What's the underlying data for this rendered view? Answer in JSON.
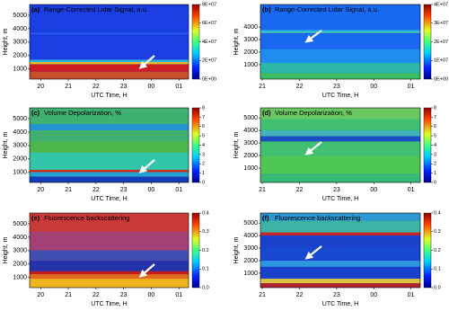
{
  "chart_data": [
    {
      "type": "heatmap",
      "panel_label": "(a)",
      "title": "Range-Corrected Lidar Signal, a.u.",
      "ylabel": "Height, m",
      "xlabel": "UTC Time, H",
      "xlim": [
        19.6,
        25.35
      ],
      "xticks": [
        20,
        21,
        22,
        23,
        {
          "value": 24,
          "label": "00"
        },
        {
          "value": 25,
          "label": "01"
        }
      ],
      "ylim": [
        250,
        5800
      ],
      "yticks": [
        1000,
        2000,
        3000,
        4000,
        5000
      ],
      "clim": [
        0,
        80000000
      ],
      "cticks": [
        {
          "value": 0,
          "label": "0E+00"
        },
        {
          "value": 20000000,
          "label": "2E+07"
        },
        {
          "value": 40000000,
          "label": "4E+07"
        },
        {
          "value": 60000000,
          "label": "6E+07"
        },
        {
          "value": 80000000,
          "label": "8E+07"
        }
      ]
    },
    {
      "type": "heatmap",
      "panel_label": "(b)",
      "title": "Range-Corrected Lidar Signal, a.u.",
      "ylabel": "Height, m",
      "xlabel": "UTC Time, H",
      "xlim": [
        20.95,
        25.25
      ],
      "xticks": [
        21,
        22,
        23,
        {
          "value": 24,
          "label": "00"
        },
        {
          "value": 25,
          "label": "01"
        }
      ],
      "ylim": [
        -150,
        5800
      ],
      "yticks": [
        1000,
        2000,
        3000,
        4000
      ],
      "clim": [
        0,
        40000000
      ],
      "cticks": [
        {
          "value": 0,
          "label": "0E+00"
        },
        {
          "value": 10000000,
          "label": "1E+07"
        },
        {
          "value": 20000000,
          "label": "2E+07"
        },
        {
          "value": 30000000,
          "label": "3E+07"
        },
        {
          "value": 40000000,
          "label": "4E+07"
        }
      ]
    },
    {
      "type": "heatmap",
      "panel_label": "(c)",
      "title": "Volume Depolarization, %",
      "ylabel": "Height, m",
      "xlabel": "UTC Time, H",
      "xlim": [
        19.6,
        25.35
      ],
      "xticks": [
        20,
        21,
        22,
        23,
        {
          "value": 24,
          "label": "00"
        },
        {
          "value": 25,
          "label": "01"
        }
      ],
      "ylim": [
        250,
        5800
      ],
      "yticks": [
        1000,
        2000,
        3000,
        4000,
        5000
      ],
      "clim": [
        0,
        8
      ],
      "cticks": [
        0,
        1,
        2,
        3,
        4,
        5,
        6,
        7,
        8
      ]
    },
    {
      "type": "heatmap",
      "panel_label": "(d)",
      "title": "Volume Depolarization, %",
      "ylabel": "Height, m",
      "xlabel": "UTC Time, H",
      "xlim": [
        20.95,
        25.25
      ],
      "xticks": [
        21,
        22,
        23,
        {
          "value": 24,
          "label": "00"
        },
        {
          "value": 25,
          "label": "01"
        }
      ],
      "ylim": [
        -150,
        5800
      ],
      "yticks": [
        1000,
        2000,
        3000,
        4000,
        5000
      ],
      "clim": [
        0,
        8
      ],
      "cticks": [
        0,
        1,
        2,
        3,
        4,
        5,
        6,
        7,
        8
      ]
    },
    {
      "type": "heatmap",
      "panel_label": "(e)",
      "title": "Fluorescence backscattering",
      "ylabel": "Height, m",
      "xlabel": "UTC Time, H",
      "xlim": [
        19.6,
        25.35
      ],
      "xticks": [
        20,
        21,
        22,
        23,
        {
          "value": 24,
          "label": "00"
        },
        {
          "value": 25,
          "label": "01"
        }
      ],
      "ylim": [
        250,
        5800
      ],
      "yticks": [
        1000,
        2000,
        3000,
        4000,
        5000
      ],
      "clim": [
        0,
        0.4
      ],
      "cticks": [
        {
          "value": 0,
          "label": "0.0"
        },
        0.1,
        0.2,
        0.3,
        0.4
      ]
    },
    {
      "type": "heatmap",
      "panel_label": "(f)",
      "title": "Fluorescence backscattering",
      "ylabel": "Height, m",
      "xlabel": "UTC Time, H",
      "xlim": [
        20.95,
        25.25
      ],
      "xticks": [
        21,
        22,
        23,
        {
          "value": 24,
          "label": "00"
        },
        {
          "value": 25,
          "label": "01"
        }
      ],
      "ylim": [
        -150,
        5800
      ],
      "yticks": [
        1000,
        2000,
        3000,
        4000,
        5000
      ],
      "clim": [
        0,
        0.4
      ],
      "cticks": [
        {
          "value": 0,
          "label": "0.0"
        },
        0.1,
        0.2,
        0.3,
        0.4
      ]
    }
  ]
}
